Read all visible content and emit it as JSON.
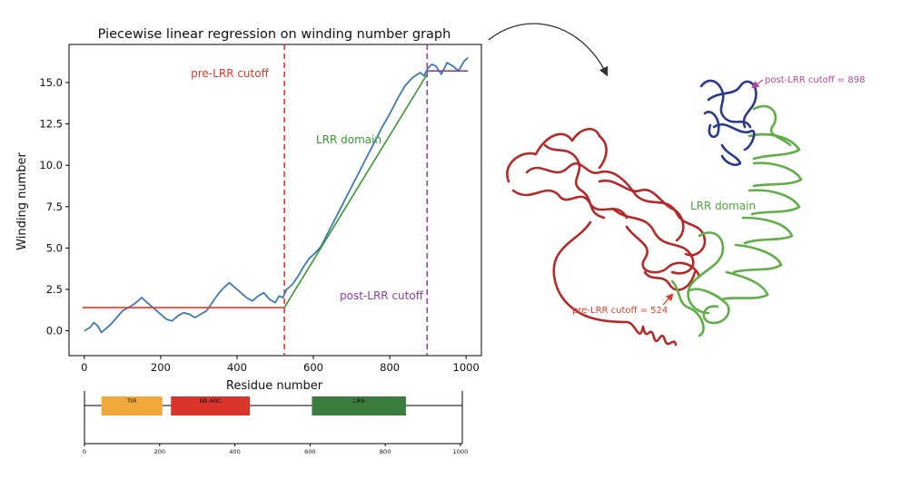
{
  "chart_data": [
    {
      "type": "line",
      "title": "Piecewise linear regression on winding number graph",
      "xlabel": "Residue number",
      "ylabel": "Winding number",
      "xlim": [
        -40,
        1040
      ],
      "ylim": [
        -1.5,
        17.3
      ],
      "xticks": [
        "0",
        "200",
        "400",
        "600",
        "800",
        "1000"
      ],
      "yticks": [
        "0.0",
        "2.5",
        "5.0",
        "7.5",
        "10.0",
        "12.5",
        "15.0"
      ],
      "xtick_values": [
        0,
        200,
        400,
        600,
        800,
        1000
      ],
      "ytick_values": [
        0,
        2.5,
        5,
        7.5,
        10,
        12.5,
        15
      ],
      "series": [
        {
          "role": "winding-number",
          "color": "#3d79b4",
          "x": [
            0,
            15,
            25,
            35,
            45,
            55,
            70,
            85,
            100,
            115,
            130,
            140,
            150,
            160,
            170,
            185,
            200,
            215,
            230,
            245,
            260,
            275,
            290,
            305,
            320,
            335,
            350,
            365,
            380,
            395,
            410,
            425,
            440,
            455,
            470,
            485,
            500,
            510,
            520,
            530,
            545,
            560,
            575,
            590,
            605,
            620,
            640,
            660,
            680,
            700,
            720,
            740,
            760,
            780,
            800,
            820,
            840,
            860,
            880,
            890,
            898,
            910,
            920,
            935,
            950,
            965,
            980,
            995,
            1005
          ],
          "y": [
            0.0,
            0.2,
            0.5,
            0.3,
            -0.1,
            0.1,
            0.4,
            0.8,
            1.2,
            1.4,
            1.6,
            1.8,
            2.0,
            1.8,
            1.6,
            1.3,
            1.0,
            0.7,
            0.6,
            0.9,
            1.1,
            1.0,
            0.8,
            1.0,
            1.2,
            1.7,
            2.2,
            2.6,
            2.9,
            2.6,
            2.3,
            2.0,
            1.8,
            2.1,
            2.3,
            1.9,
            1.7,
            2.1,
            2.0,
            2.5,
            2.8,
            3.3,
            3.9,
            4.4,
            4.7,
            5.1,
            6.0,
            6.9,
            7.8,
            8.7,
            9.6,
            10.5,
            11.4,
            12.3,
            13.1,
            14.0,
            14.8,
            15.3,
            15.6,
            15.4,
            15.8,
            16.1,
            16.0,
            15.5,
            16.2,
            16.0,
            15.7,
            16.3,
            16.5
          ]
        },
        {
          "role": "pre-LRR fit",
          "color": "#e0392b",
          "x": [
            -5,
            524
          ],
          "y": [
            1.4,
            1.4
          ]
        },
        {
          "role": "LRR domain fit",
          "color": "#3a9a2f",
          "x": [
            524,
            898
          ],
          "y": [
            1.4,
            15.5
          ]
        },
        {
          "role": "post-LRR fit",
          "color": "#8e3fa0",
          "x": [
            898,
            1005
          ],
          "y": [
            15.7,
            15.7
          ]
        }
      ],
      "cutoffs": [
        {
          "x": 524,
          "color": "#e0392b"
        },
        {
          "x": 898,
          "color": "#8e3fa0"
        }
      ],
      "annotations": [
        {
          "text": "pre-LRR cutoff",
          "color": "#e0392b"
        },
        {
          "text": "LRR domain",
          "color": "#3a9a2f"
        },
        {
          "text": "post-LRR cutoff",
          "color": "#8e3fa0"
        }
      ],
      "grid": false
    },
    {
      "type": "bar",
      "role": "domain map",
      "xlim": [
        0,
        1005
      ],
      "xticks": [
        "0",
        "200",
        "400",
        "600",
        "800",
        "1000"
      ],
      "xtick_values": [
        0,
        200,
        400,
        600,
        800,
        1000
      ],
      "domains": [
        {
          "label": "TIR",
          "start": 45,
          "end": 207,
          "color": "#f0a83a"
        },
        {
          "label": "NB-ARC",
          "start": 230,
          "end": 440,
          "color": "#d9352a"
        },
        {
          "label": "LRR",
          "start": 605,
          "end": 855,
          "color": "#3a7d3c"
        }
      ]
    }
  ],
  "structure": {
    "labels": [
      {
        "text": "post-LRR cutoff = 898",
        "color": "#b4469c"
      },
      {
        "text": "LRR domain",
        "color": "#4caa3c"
      },
      {
        "text": "pre-LRR cutoff = 524",
        "color": "#d6402f"
      }
    ],
    "colors": {
      "post": "#2a3a8a",
      "lrr": "#5fae48",
      "pre": "#b32a28"
    }
  }
}
